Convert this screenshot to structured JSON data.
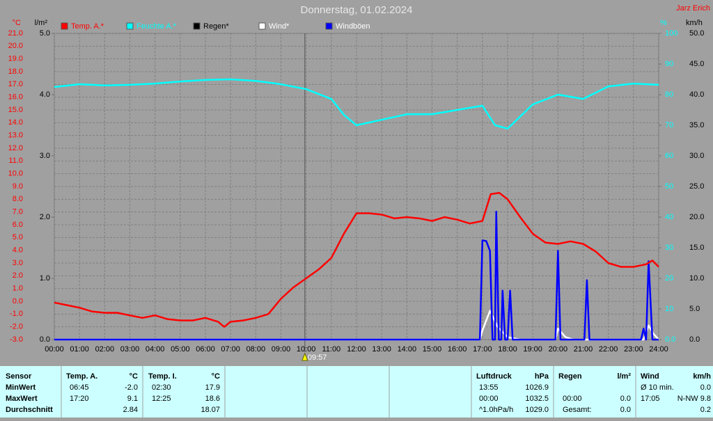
{
  "chart_data": {
    "type": "line",
    "title": "Donnerstag, 01.02.2024",
    "station": "Jarz Erich",
    "y_unit": "°C",
    "y2_unit": "l/m²",
    "y3_unit": "%",
    "y4_unit": "km/h",
    "xlim": [
      0,
      24
    ],
    "xticks": [
      {
        "value": 0,
        "label": "00:00"
      },
      {
        "value": 1,
        "label": "01:00"
      },
      {
        "value": 2,
        "label": "02:00"
      },
      {
        "value": 3,
        "label": "03:00"
      },
      {
        "value": 4,
        "label": "04:00"
      },
      {
        "value": 5,
        "label": "05:00"
      },
      {
        "value": 6,
        "label": "06:00"
      },
      {
        "value": 7,
        "label": "07:00"
      },
      {
        "value": 8,
        "label": "08:00"
      },
      {
        "value": 9,
        "label": "09:00"
      },
      {
        "value": 10,
        "label": "10:00"
      },
      {
        "value": 11,
        "label": "11:00"
      },
      {
        "value": 12,
        "label": "12:00"
      },
      {
        "value": 13,
        "label": "13:00"
      },
      {
        "value": 14,
        "label": "14:00"
      },
      {
        "value": 15,
        "label": "15:00"
      },
      {
        "value": 16,
        "label": "16:00"
      },
      {
        "value": 17,
        "label": "17:00"
      },
      {
        "value": 18,
        "label": "18:00"
      },
      {
        "value": 19,
        "label": "19:00"
      },
      {
        "value": 20,
        "label": "20:00"
      },
      {
        "value": 21,
        "label": "21:00"
      },
      {
        "value": 22,
        "label": "22:00"
      },
      {
        "value": 23,
        "label": "23:00"
      },
      {
        "value": 24,
        "label": "24:00"
      }
    ],
    "ylim": [
      -3,
      21
    ],
    "yticks": [
      {
        "value": -3,
        "label": "-3.0"
      },
      {
        "value": -2,
        "label": "-2.0"
      },
      {
        "value": -1,
        "label": "-1.0"
      },
      {
        "value": 0,
        "label": "0.0"
      },
      {
        "value": 1,
        "label": "1.0"
      },
      {
        "value": 2,
        "label": "2.0"
      },
      {
        "value": 3,
        "label": "3.0"
      },
      {
        "value": 4,
        "label": "4.0"
      },
      {
        "value": 5,
        "label": "5.0"
      },
      {
        "value": 6,
        "label": "6.0"
      },
      {
        "value": 7,
        "label": "7.0"
      },
      {
        "value": 8,
        "label": "8.0"
      },
      {
        "value": 9,
        "label": "9.0"
      },
      {
        "value": 10,
        "label": "10.0"
      },
      {
        "value": 11,
        "label": "11.0"
      },
      {
        "value": 12,
        "label": "12.0"
      },
      {
        "value": 13,
        "label": "13.0"
      },
      {
        "value": 14,
        "label": "14.0"
      },
      {
        "value": 15,
        "label": "15.0"
      },
      {
        "value": 16,
        "label": "16.0"
      },
      {
        "value": 17,
        "label": "17.0"
      },
      {
        "value": 18,
        "label": "18.0"
      },
      {
        "value": 19,
        "label": "19.0"
      },
      {
        "value": 20,
        "label": "20.0"
      },
      {
        "value": 21,
        "label": "21.0"
      }
    ],
    "y2lim": [
      0,
      5
    ],
    "y2ticks": [
      {
        "value": 0,
        "label": "0.0"
      },
      {
        "value": 1,
        "label": "1.0"
      },
      {
        "value": 2,
        "label": "2.0"
      },
      {
        "value": 3,
        "label": "3.0"
      },
      {
        "value": 4,
        "label": "4.0"
      },
      {
        "value": 5,
        "label": "5.0"
      }
    ],
    "y3lim": [
      0,
      100
    ],
    "y3ticks": [
      {
        "value": 0,
        "label": "0.0"
      },
      10,
      20,
      30,
      40,
      50,
      60,
      70,
      80,
      90,
      100
    ],
    "y4lim": [
      0,
      50
    ],
    "y4ticks": [
      {
        "value": 0,
        "label": "0.0"
      },
      {
        "value": 5,
        "label": "5.0"
      },
      {
        "value": 10,
        "label": "10.0"
      },
      {
        "value": 15,
        "label": "15.0"
      },
      {
        "value": 20,
        "label": "20.0"
      },
      {
        "value": 25,
        "label": "25.0"
      },
      {
        "value": 30,
        "label": "30.0"
      },
      {
        "value": 35,
        "label": "35.0"
      },
      {
        "value": 40,
        "label": "40.0"
      },
      {
        "value": 45,
        "label": "45.0"
      },
      {
        "value": 50,
        "label": "50.0"
      }
    ],
    "grid": true,
    "annotation": {
      "x": 9.95,
      "text": "09:57"
    },
    "series": [
      {
        "name": "Temp. A.*",
        "color": "#ff0000",
        "text_color": "#ff0000",
        "axis": "y",
        "x": [
          0,
          0.5,
          1,
          1.5,
          2,
          2.5,
          3,
          3.5,
          4,
          4.5,
          5,
          5.5,
          6,
          6.5,
          6.75,
          7,
          7.5,
          8,
          8.5,
          9,
          9.5,
          10,
          10.5,
          11,
          11.5,
          12,
          12.5,
          13,
          13.5,
          14,
          14.5,
          15,
          15.5,
          16,
          16.5,
          17,
          17.33,
          17.67,
          18,
          18.5,
          19,
          19.5,
          20,
          20.5,
          21,
          21.5,
          22,
          22.5,
          23,
          23.5,
          23.75,
          24
        ],
        "values": [
          -0.1,
          -0.3,
          -0.5,
          -0.8,
          -0.9,
          -0.9,
          -1.1,
          -1.3,
          -1.1,
          -1.4,
          -1.5,
          -1.5,
          -1.3,
          -1.6,
          -2.0,
          -1.6,
          -1.5,
          -1.3,
          -1.0,
          0.2,
          1.1,
          1.8,
          2.5,
          3.4,
          5.3,
          6.9,
          6.9,
          6.8,
          6.5,
          6.6,
          6.5,
          6.3,
          6.6,
          6.4,
          6.1,
          6.3,
          8.4,
          8.5,
          8.0,
          6.6,
          5.3,
          4.6,
          4.5,
          4.7,
          4.5,
          3.9,
          3.0,
          2.7,
          2.7,
          2.9,
          3.2,
          2.7
        ]
      },
      {
        "name": "Feuchte A.*",
        "color": "#00ffff",
        "text_color": "#00ffff",
        "axis": "y3",
        "x": [
          0,
          1,
          2,
          3,
          4,
          5,
          6,
          7,
          8,
          9,
          10,
          11,
          11.5,
          12,
          13,
          14,
          15,
          16,
          17,
          17.5,
          18,
          19,
          20,
          21,
          22,
          23,
          24
        ],
        "values": [
          82.5,
          83.4,
          83,
          83.2,
          83.6,
          84.3,
          84.8,
          85,
          84.5,
          83.4,
          81.8,
          78.6,
          73.4,
          70,
          71.8,
          73.6,
          73.6,
          75,
          76.4,
          70,
          68.9,
          76.8,
          80,
          78.6,
          82.7,
          83.6,
          83.2
        ]
      },
      {
        "name": "Regen*",
        "color": "#000000",
        "text_color": "#000000",
        "axis": "y2",
        "x": [],
        "values": []
      },
      {
        "name": "Wind*",
        "color": "#ffffff",
        "text_color": "#ffffff",
        "axis": "y4",
        "x": [
          0,
          16.9,
          17.0,
          17.3,
          17.6,
          18.0,
          18.5,
          19.9,
          20.0,
          20.3,
          20.6,
          23.4,
          23.6,
          23.8,
          24
        ],
        "values": [
          0,
          0,
          1.5,
          4.7,
          2.1,
          0.4,
          0,
          0,
          1.8,
          0.4,
          0,
          0,
          2.3,
          0.9,
          0
        ]
      },
      {
        "name": "Windböen",
        "color": "#0000ff",
        "text_color": "#ffffff",
        "axis": "y4",
        "x": [
          0,
          16.9,
          17.0,
          17.15,
          17.3,
          17.4,
          17.5,
          17.55,
          17.65,
          17.75,
          17.8,
          17.9,
          18.0,
          18.1,
          18.2,
          19.9,
          20.0,
          20.1,
          21.05,
          21.15,
          21.25,
          23.3,
          23.4,
          23.5,
          23.6,
          23.75,
          24
        ],
        "values": [
          0,
          0,
          16.2,
          16.1,
          14.5,
          0,
          0,
          20.9,
          0,
          0,
          8,
          0,
          0,
          8,
          0,
          0,
          14.5,
          0,
          0,
          9.7,
          0,
          0,
          1.8,
          0,
          12.8,
          0,
          0
        ]
      }
    ]
  },
  "table": {
    "sensor_header": "Sensor",
    "row_labels": [
      "MinWert",
      "MaxWert",
      "Durchschnitt"
    ],
    "groups": [
      {
        "title": "Temp. A.",
        "unit": "°C",
        "rows": [
          {
            "time": "06:45",
            "value": "-2.0"
          },
          {
            "time": "17:20",
            "value": "9.1"
          },
          {
            "value": "2.84"
          }
        ]
      },
      {
        "title": "Temp. I.",
        "unit": "°C",
        "rows": [
          {
            "time": "02:30",
            "value": "17.9"
          },
          {
            "time": "12:25",
            "value": "18.6"
          },
          {
            "value": "18.07"
          }
        ]
      },
      {
        "title": "Luftdruck",
        "unit": "hPa",
        "rows": [
          {
            "time": "13:55",
            "value": "1026.9"
          },
          {
            "time": "00:00",
            "value": "1032.5"
          },
          {
            "time": "^1.0hPa/h",
            "value": "1029.0"
          }
        ]
      },
      {
        "title": "Regen",
        "unit": "l/m²",
        "rows": [
          null,
          {
            "time": "00:00",
            "value": "0.0"
          },
          {
            "time": "Gesamt:",
            "value": "0.0"
          }
        ]
      },
      {
        "title": "Wind",
        "unit": "km/h",
        "rows": [
          {
            "time": "Ø 10 min.",
            "value": "0.0"
          },
          {
            "time": "17:05",
            "value": "N-NW 9.8"
          },
          {
            "value": "0.2"
          }
        ]
      }
    ]
  }
}
